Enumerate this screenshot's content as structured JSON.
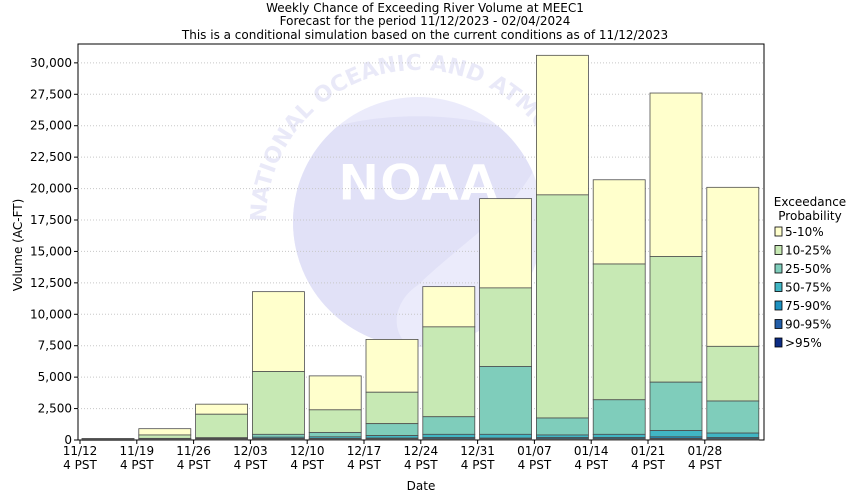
{
  "chart_data": {
    "type": "bar",
    "title_lines": [
      "Weekly Chance of Exceeding River Volume at MEEC1",
      "Forecast for the period 11/12/2023 - 02/04/2024",
      "This is a conditional simulation based on the current conditions as of 11/12/2023"
    ],
    "xlabel": "Date",
    "ylabel": "Volume (AC-FT)",
    "ylim": [
      0,
      31500
    ],
    "yticks": [
      0,
      2500,
      5000,
      7500,
      10000,
      12500,
      15000,
      17500,
      20000,
      22500,
      25000,
      27500,
      30000
    ],
    "ytick_labels": [
      "0",
      "2,500",
      "5,000",
      "7,500",
      "10,000",
      "12,500",
      "15,000",
      "17,500",
      "20,000",
      "22,500",
      "25,000",
      "27,500",
      "30,000"
    ],
    "categories": [
      [
        "11/12",
        "4 PST"
      ],
      [
        "11/19",
        "4 PST"
      ],
      [
        "11/26",
        "4 PST"
      ],
      [
        "12/03",
        "4 PST"
      ],
      [
        "12/10",
        "4 PST"
      ],
      [
        "12/17",
        "4 PST"
      ],
      [
        "12/24",
        "4 PST"
      ],
      [
        "12/31",
        "4 PST"
      ],
      [
        "01/07",
        "4 PST"
      ],
      [
        "01/14",
        "4 PST"
      ],
      [
        "01/21",
        "4 PST"
      ],
      [
        "01/28",
        "4 PST"
      ]
    ],
    "legend_title": [
      "Exceedance",
      "Probability"
    ],
    "legend_position": "right",
    "series": [
      {
        "name": "5-10%",
        "color": "#ffffcc",
        "upper": [
          120,
          900,
          2850,
          11800,
          5100,
          8000,
          12200,
          19200,
          30600,
          20700,
          27600,
          20100
        ]
      },
      {
        "name": "10-25%",
        "color": "#c7e9b4",
        "upper": [
          90,
          400,
          2050,
          5450,
          2400,
          3800,
          9000,
          12100,
          19500,
          14000,
          14600,
          7450
        ]
      },
      {
        "name": "25-50%",
        "color": "#7fcdbb",
        "upper": [
          70,
          130,
          180,
          450,
          600,
          1300,
          1850,
          5850,
          1750,
          3200,
          4600,
          3100
        ]
      },
      {
        "name": "50-75%",
        "color": "#41b6c4",
        "upper": [
          50,
          90,
          120,
          220,
          250,
          350,
          450,
          450,
          400,
          450,
          750,
          550
        ]
      },
      {
        "name": "75-90%",
        "color": "#1d91c0",
        "upper": [
          30,
          60,
          80,
          120,
          120,
          150,
          200,
          150,
          200,
          200,
          250,
          200
        ]
      },
      {
        "name": "90-95%",
        "color": "#225ea8",
        "upper": [
          20,
          40,
          50,
          70,
          70,
          80,
          100,
          80,
          100,
          100,
          120,
          100
        ]
      },
      {
        "name": ">95%",
        "color": "#0c2c84",
        "upper": [
          10,
          20,
          30,
          40,
          40,
          40,
          50,
          40,
          50,
          50,
          60,
          50
        ]
      }
    ]
  },
  "watermark": {
    "logo_text": "NOAA",
    "ring_text": "NATIONAL OCEANIC AND ATMOSPHERIC ADMINISTRATION"
  }
}
